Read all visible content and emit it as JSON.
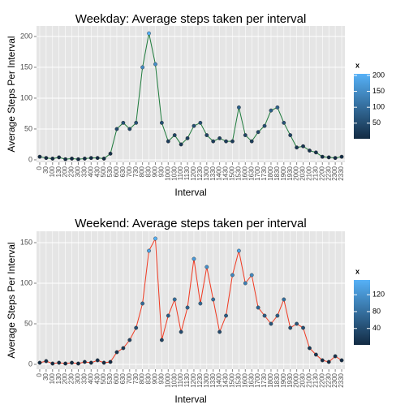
{
  "chart_data": [
    {
      "type": "line",
      "title": "Weekday: Average steps taken per interval",
      "x_label": "Interval",
      "y_label": "Average Steps Per Interval",
      "categories": [
        "0",
        "30",
        "100",
        "130",
        "200",
        "230",
        "300",
        "330",
        "400",
        "430",
        "500",
        "530",
        "600",
        "630",
        "700",
        "730",
        "800",
        "830",
        "900",
        "930",
        "1000",
        "1030",
        "1100",
        "1130",
        "1200",
        "1230",
        "1300",
        "1330",
        "1400",
        "1430",
        "1500",
        "1530",
        "1600",
        "1630",
        "1700",
        "1730",
        "1800",
        "1830",
        "1900",
        "1930",
        "2000",
        "2030",
        "2100",
        "2130",
        "2200",
        "2230",
        "2300",
        "2330"
      ],
      "series": [
        {
          "name": "Weekday",
          "color": "#1e7b3c",
          "values": [
            5,
            3,
            2,
            4,
            1,
            2,
            1,
            2,
            3,
            3,
            2,
            10,
            50,
            60,
            50,
            60,
            150,
            205,
            155,
            60,
            30,
            40,
            25,
            35,
            55,
            60,
            40,
            30,
            35,
            30,
            30,
            85,
            40,
            30,
            45,
            55,
            80,
            85,
            60,
            40,
            20,
            22,
            15,
            12,
            5,
            4,
            3,
            5
          ]
        }
      ],
      "ylim": [
        -4,
        217
      ],
      "yticks": [
        0,
        50,
        100,
        150,
        200
      ],
      "grid": true,
      "legend_title": "x",
      "colorlim": [
        1,
        205
      ],
      "colorticks": [
        50,
        100,
        150,
        200
      ],
      "color_low": "#132b43",
      "color_high": "#56b1f7"
    },
    {
      "type": "line",
      "title": "Weekend: Average steps taken per interval",
      "x_label": "Interval",
      "y_label": "Average Steps Per Interval",
      "categories": [
        "0",
        "30",
        "100",
        "130",
        "200",
        "230",
        "300",
        "330",
        "400",
        "430",
        "500",
        "530",
        "600",
        "630",
        "700",
        "730",
        "800",
        "830",
        "900",
        "930",
        "1000",
        "1030",
        "1100",
        "1130",
        "1200",
        "1230",
        "1300",
        "1330",
        "1400",
        "1430",
        "1500",
        "1530",
        "1600",
        "1630",
        "1700",
        "1730",
        "1800",
        "1830",
        "1900",
        "1930",
        "2000",
        "2030",
        "2100",
        "2130",
        "2200",
        "2230",
        "2300",
        "2330"
      ],
      "series": [
        {
          "name": "Weekend",
          "color": "#f03a22",
          "values": [
            2,
            4,
            1,
            2,
            1,
            2,
            1,
            3,
            2,
            5,
            2,
            3,
            15,
            20,
            30,
            45,
            75,
            140,
            155,
            30,
            60,
            80,
            40,
            70,
            130,
            75,
            120,
            80,
            40,
            60,
            110,
            140,
            100,
            110,
            70,
            60,
            50,
            60,
            80,
            45,
            50,
            45,
            20,
            12,
            5,
            3,
            10,
            5
          ]
        }
      ],
      "ylim": [
        -6,
        164
      ],
      "yticks": [
        0,
        50,
        100,
        150
      ],
      "grid": true,
      "legend_title": "x",
      "colorlim": [
        1,
        155
      ],
      "colorticks": [
        40,
        80,
        120
      ],
      "color_low": "#132b43",
      "color_high": "#56b1f7"
    }
  ]
}
